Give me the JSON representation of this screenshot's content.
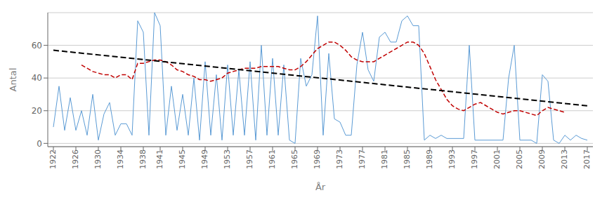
{
  "chart_data": {
    "type": "line",
    "xlabel": "År",
    "ylabel": "Antal",
    "x": [
      1922,
      1923,
      1924,
      1925,
      1926,
      1927,
      1928,
      1929,
      1930,
      1931,
      1932,
      1933,
      1934,
      1935,
      1936,
      1937,
      1938,
      1939,
      1940,
      1941,
      1942,
      1943,
      1944,
      1945,
      1946,
      1947,
      1948,
      1949,
      1950,
      1951,
      1952,
      1953,
      1954,
      1955,
      1956,
      1957,
      1958,
      1959,
      1960,
      1961,
      1962,
      1963,
      1964,
      1965,
      1966,
      1967,
      1968,
      1969,
      1970,
      1971,
      1972,
      1973,
      1974,
      1975,
      1976,
      1977,
      1978,
      1979,
      1980,
      1981,
      1982,
      1983,
      1984,
      1985,
      1986,
      1987,
      1988,
      1989,
      1990,
      1991,
      1992,
      1993,
      1994,
      1995,
      1996,
      1997,
      1998,
      1999,
      2000,
      2001,
      2002,
      2003,
      2004,
      2005,
      2006,
      2007,
      2008,
      2009,
      2010,
      2011,
      2012,
      2013,
      2014,
      2015,
      2016,
      2017
    ],
    "series": [
      {
        "color": "#5B9BD5",
        "line_style": "solid",
        "values": [
          10,
          35,
          8,
          28,
          8,
          20,
          5,
          30,
          2,
          18,
          25,
          5,
          12,
          12,
          5,
          75,
          68,
          5,
          80,
          72,
          5,
          35,
          8,
          30,
          5,
          40,
          2,
          50,
          5,
          42,
          2,
          48,
          5,
          45,
          5,
          50,
          2,
          60,
          5,
          52,
          5,
          48,
          2,
          0,
          52,
          35,
          42,
          78,
          5,
          55,
          15,
          13,
          5,
          5,
          48,
          68,
          45,
          38,
          65,
          68,
          62,
          62,
          75,
          78,
          72,
          72,
          2,
          5,
          3,
          5,
          3,
          3,
          3,
          3,
          60,
          2,
          2,
          2,
          2,
          2,
          2,
          40,
          60,
          2,
          2,
          2,
          0,
          42,
          38,
          2,
          0,
          5,
          2,
          5,
          3,
          2
        ]
      },
      {
        "color": "#C00000",
        "line_style": "dashed",
        "values": [
          null,
          null,
          null,
          null,
          null,
          48,
          46,
          44,
          43,
          42,
          42,
          40,
          42,
          42,
          39,
          49,
          49,
          50,
          51,
          51,
          50,
          48,
          45,
          44,
          42,
          41,
          39,
          39,
          38,
          39,
          40,
          43,
          44,
          45,
          46,
          46,
          46,
          47,
          47,
          47,
          47,
          46,
          45,
          45,
          47,
          50,
          54,
          58,
          60,
          62,
          62,
          60,
          57,
          53,
          51,
          50,
          50,
          50,
          52,
          54,
          56,
          58,
          60,
          62,
          62,
          60,
          55,
          47,
          39,
          33,
          27,
          23,
          21,
          20,
          22,
          24,
          25,
          23,
          21,
          19,
          18,
          19,
          20,
          20,
          19,
          18,
          17,
          20,
          22,
          21,
          20,
          19,
          null,
          null,
          null,
          null
        ]
      },
      {
        "color": "#000000",
        "line_style": "dashed",
        "x": [
          1922,
          2017
        ],
        "values": [
          57,
          23
        ]
      }
    ],
    "xlim": [
      1921,
      2018
    ],
    "xticks": [
      1922,
      1926,
      1930,
      1934,
      1938,
      1941,
      1945,
      1949,
      1953,
      1957,
      1961,
      1965,
      1969,
      1973,
      1977,
      1981,
      1985,
      1989,
      1993,
      1997,
      2001,
      2005,
      2009,
      2013,
      2017
    ],
    "ylim": [
      -2,
      80
    ],
    "yticks": [
      0,
      20,
      40,
      60
    ],
    "grid": "y"
  }
}
